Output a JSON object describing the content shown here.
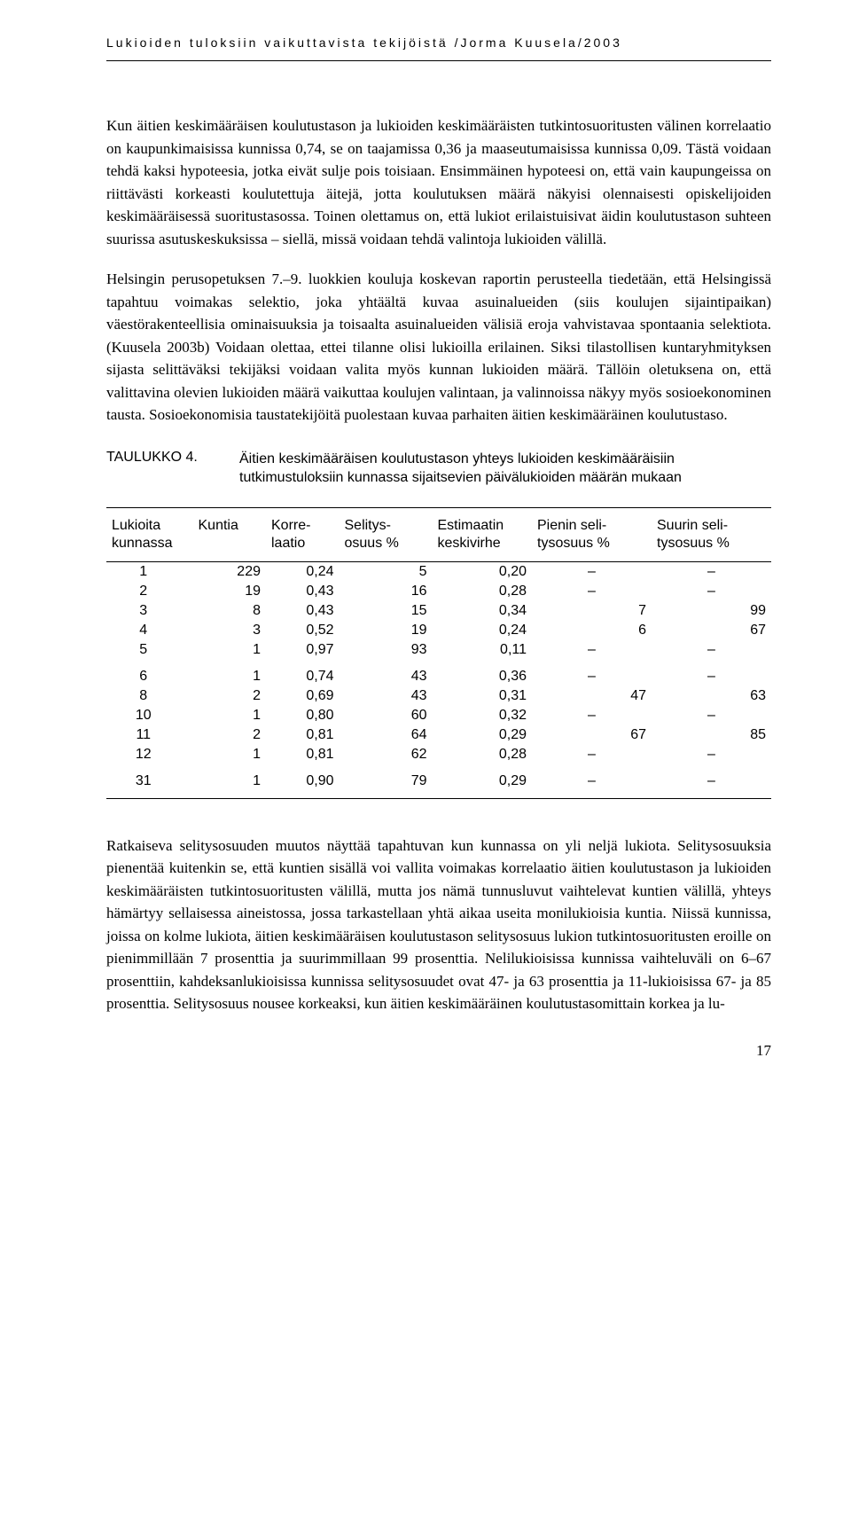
{
  "header": "Lukioiden tuloksiin vaikuttavista tekijöistä /Jorma Kuusela/2003",
  "para1": "Kun äitien keskimääräisen koulutustason ja lukioiden keskimääräisten tutkintosuoritusten välinen korrelaatio on kaupunkimaisissa kunnissa 0,74, se on taajamissa 0,36 ja maaseutumaisissa kunnissa 0,09. Tästä voidaan tehdä kaksi hypoteesia, jotka eivät sulje pois toisiaan. Ensimmäinen hypoteesi on, että vain kaupungeissa on riittävästi korkeasti koulutettuja äitejä, jotta koulutuksen määrä näkyisi olennaisesti opiskelijoiden keskimääräisessä suoritustasossa. Toinen olettamus on, että lukiot erilaistuisivat äidin koulutustason suhteen suurissa asutuskeskuksissa – siellä, missä voidaan tehdä valintoja lukioiden välillä.",
  "para2": "Helsingin perusopetuksen 7.–9. luokkien kouluja koskevan raportin perusteella tiedetään, että Helsingissä tapahtuu voimakas selektio, joka yhtäältä kuvaa asuinalueiden (siis koulujen sijaintipaikan) väestörakenteellisia ominaisuuksia ja toisaalta asuinalueiden välisiä eroja vahvistavaa spontaania selektiota. (Kuusela 2003b) Voidaan olettaa, ettei tilanne olisi lukioilla erilainen. Siksi tilastollisen kuntaryhmityksen sijasta selittäväksi tekijäksi voidaan valita myös kunnan lukioiden määrä. Tällöin oletuksena on, että valittavina olevien lukioiden määrä vaikuttaa koulujen valintaan, ja valinnoissa näkyy myös sosioekonominen tausta. Sosioekonomisia taustatekijöitä puolestaan kuvaa parhaiten äitien keskimääräinen koulutustaso.",
  "table": {
    "label": "TAULUKKO 4.",
    "title": "Äitien keskimääräisen koulutustason yhteys lukioiden keskimääräisiin tutkimustuloksiin kunnassa sijaitsevien päivälukioiden määrän mukaan",
    "columns": [
      "Lukioita kunnassa",
      "Kuntia",
      "Korre-laatio",
      "Selitys-osuus %",
      "Estimaatin keskivirhe",
      "Pienin seli-tysosuus %",
      "Suurin seli-tysosuus %"
    ],
    "groups": [
      [
        [
          "1",
          "229",
          "0,24",
          "5",
          "0,20",
          "–",
          "–"
        ],
        [
          "2",
          "19",
          "0,43",
          "16",
          "0,28",
          "–",
          "–"
        ],
        [
          "3",
          "8",
          "0,43",
          "15",
          "0,34",
          "7",
          "99"
        ],
        [
          "4",
          "3",
          "0,52",
          "19",
          "0,24",
          "6",
          "67"
        ],
        [
          "5",
          "1",
          "0,97",
          "93",
          "0,11",
          "–",
          "–"
        ]
      ],
      [
        [
          "6",
          "1",
          "0,74",
          "43",
          "0,36",
          "–",
          "–"
        ],
        [
          "8",
          "2",
          "0,69",
          "43",
          "0,31",
          "47",
          "63"
        ],
        [
          "10",
          "1",
          "0,80",
          "60",
          "0,32",
          "–",
          "–"
        ],
        [
          "11",
          "2",
          "0,81",
          "64",
          "0,29",
          "67",
          "85"
        ],
        [
          "12",
          "1",
          "0,81",
          "62",
          "0,28",
          "–",
          "–"
        ]
      ],
      [
        [
          "31",
          "1",
          "0,90",
          "79",
          "0,29",
          "–",
          "–"
        ]
      ]
    ]
  },
  "para3": "Ratkaiseva selitysosuuden muutos näyttää tapahtuvan kun kunnassa on yli neljä lukiota. Selitysosuuksia pienentää kuitenkin se, että kuntien sisällä voi vallita voimakas korrelaatio äitien koulutustason ja lukioiden keskimääräisten tutkintosuoritusten välillä, mutta jos nämä tunnusluvut vaihtelevat kuntien välillä, yhteys hämärtyy sellaisessa aineistossa, jossa tarkastellaan yhtä aikaa useita monilukioisia kuntia. Niissä kunnissa, joissa on kolme lukiota, äitien keskimääräisen koulutustason selitysosuus lukion tutkintosuoritusten eroille on pienimmillään 7 prosenttia ja suurimmillaan 99 prosenttia. Nelilukioisissa kunnissa vaihteluväli on 6–67 prosenttiin, kahdeksanlukioisissa kunnissa selitysosuudet ovat 47- ja 63 prosenttia ja 11-lukioisissa 67- ja 85 prosenttia. Selitysosuus nousee korkeaksi, kun äitien keskimääräinen koulutustasomittain korkea ja lu-",
  "page": "17"
}
